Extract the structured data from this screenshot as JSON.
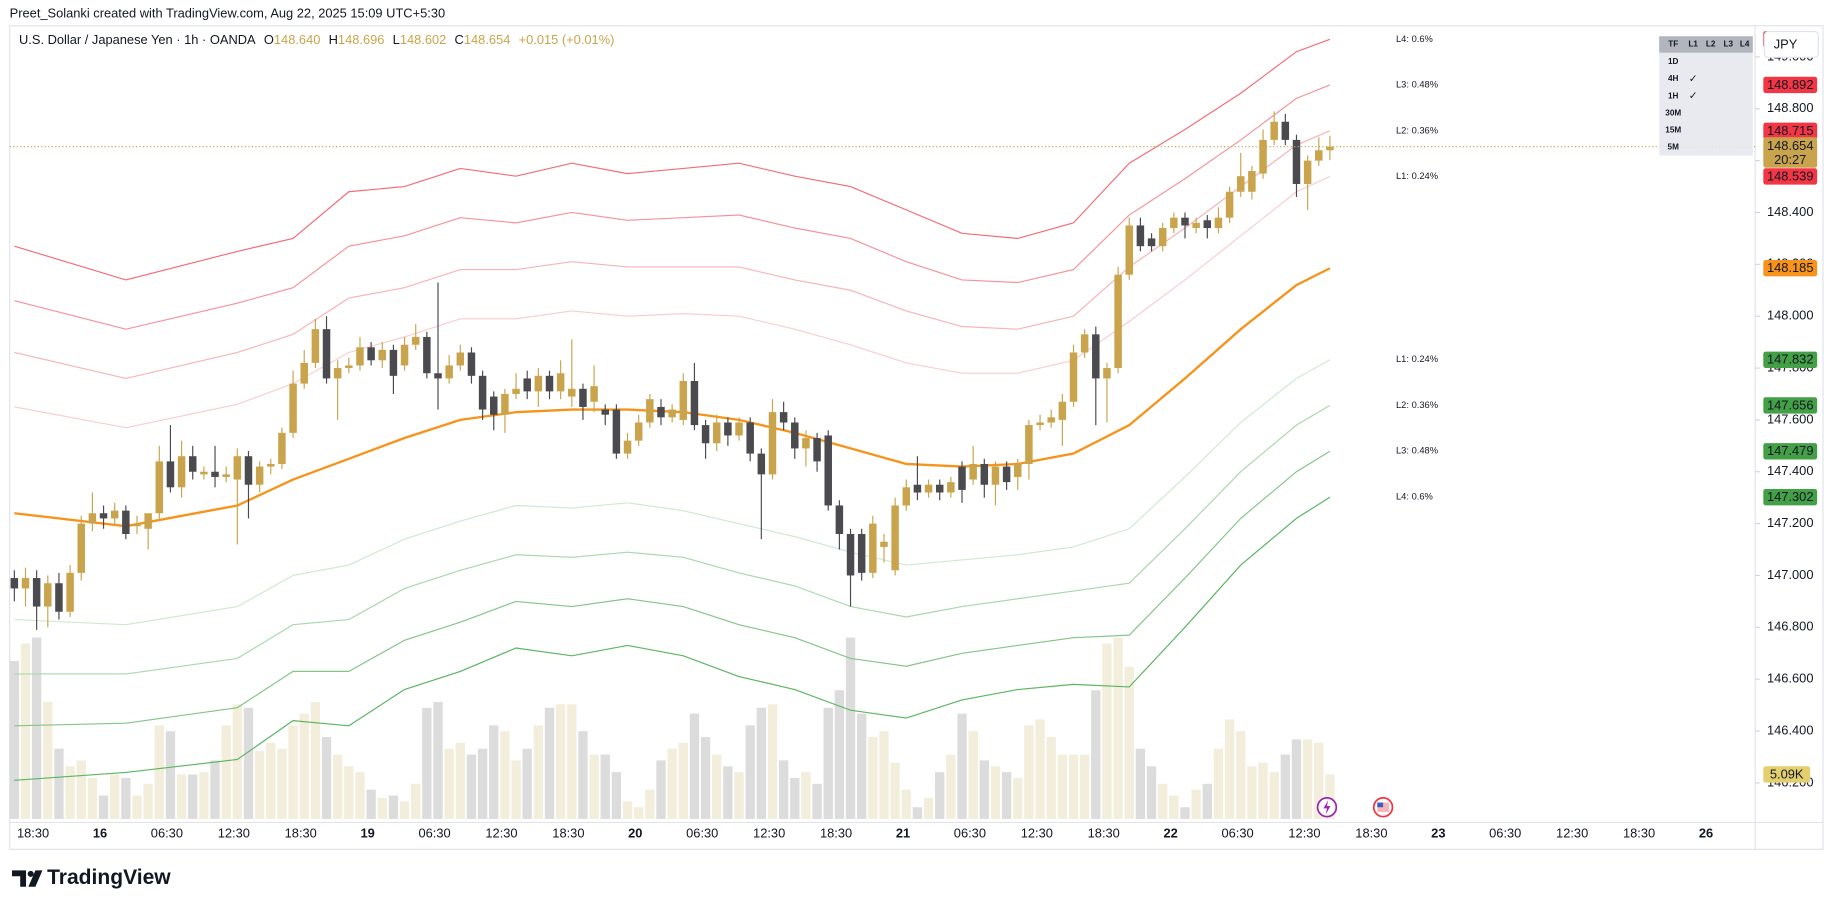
{
  "chart_data": {
    "type": "candlestick",
    "credit": "Preet_Solanki created with TradingView.com, Aug 22, 2025 15:09 UTC+5:30",
    "symbol": "U.S. Dollar / Japanese Yen · 1h · OANDA",
    "legend_keys": [
      "O",
      "H",
      "L",
      "C"
    ],
    "legend_values": [
      "148.640",
      "148.696",
      "148.602",
      "148.654"
    ],
    "change": "+0.015 (+0.01%)",
    "currency": "JPY",
    "countdown": "20:27",
    "brand": "TradingView",
    "up_color": "#c9a44c",
    "down_color": "#4a4a4f",
    "open": [
      146.99,
      146.95,
      146.99,
      146.88,
      146.97,
      146.86,
      147.01,
      147.2,
      147.24,
      147.22,
      147.25,
      147.19,
      147.18,
      147.24,
      147.44,
      147.34,
      147.46,
      147.39,
      147.4,
      147.38,
      147.37,
      147.46,
      147.35,
      147.42,
      147.43,
      147.55,
      147.74,
      147.82,
      147.95,
      147.76,
      147.8,
      147.81,
      147.88,
      147.83,
      147.87,
      147.81,
      147.89,
      147.92,
      147.78,
      147.76,
      147.81,
      147.86,
      147.77,
      147.69,
      147.62,
      147.7,
      147.76,
      147.71,
      147.77,
      147.71,
      147.69,
      147.72,
      147.67,
      147.64,
      147.64,
      147.47,
      147.52,
      147.59,
      147.65,
      147.61,
      147.6,
      147.75,
      147.58,
      147.51,
      147.59,
      147.54,
      147.59,
      147.47,
      147.39,
      147.63,
      147.59,
      147.49,
      147.53,
      147.54,
      147.27,
      147.16,
      147.16,
      147.01,
      147.11,
      147.02,
      147.27,
      147.35,
      147.32,
      147.35,
      147.32,
      147.42,
      147.37,
      147.43,
      147.35,
      147.42,
      147.38,
      147.43,
      147.58,
      147.59,
      147.6,
      147.67,
      147.86,
      147.93,
      147.76,
      147.8,
      148.16,
      148.35,
      148.3,
      148.27,
      148.34,
      148.38,
      148.34,
      148.37,
      148.34,
      148.38,
      148.48,
      148.48,
      148.55,
      148.68,
      148.75,
      148.68,
      148.51,
      148.6,
      148.64
    ],
    "high": [
      147.02,
      147.03,
      147.02,
      147.0,
      147.01,
      147.04,
      147.23,
      147.32,
      147.27,
      147.28,
      147.27,
      147.23,
      147.22,
      147.5,
      147.58,
      147.52,
      147.5,
      147.42,
      147.5,
      147.42,
      147.49,
      147.48,
      147.44,
      147.45,
      147.57,
      147.79,
      147.87,
      147.99,
      148.0,
      147.83,
      147.84,
      147.92,
      147.9,
      147.9,
      147.89,
      147.92,
      147.97,
      147.94,
      148.13,
      147.85,
      147.89,
      147.88,
      147.79,
      147.71,
      147.72,
      147.78,
      147.79,
      147.8,
      147.79,
      147.83,
      147.91,
      147.74,
      147.81,
      147.66,
      147.66,
      147.55,
      147.62,
      147.7,
      147.68,
      147.66,
      147.78,
      147.82,
      147.6,
      147.62,
      147.61,
      147.61,
      147.61,
      147.49,
      147.68,
      147.67,
      147.61,
      147.56,
      147.55,
      147.56,
      147.29,
      147.18,
      147.18,
      147.23,
      147.16,
      147.3,
      147.37,
      147.46,
      147.37,
      147.37,
      147.38,
      147.44,
      147.5,
      147.45,
      147.44,
      147.44,
      147.45,
      147.6,
      147.62,
      147.64,
      147.7,
      147.89,
      147.95,
      147.96,
      147.82,
      148.19,
      148.38,
      148.38,
      148.32,
      148.36,
      148.4,
      148.4,
      148.38,
      148.39,
      148.42,
      148.5,
      148.63,
      148.58,
      148.72,
      148.79,
      148.78,
      148.7,
      148.62,
      148.69,
      148.696
    ],
    "low": [
      146.9,
      146.88,
      146.79,
      146.8,
      146.83,
      146.84,
      146.98,
      147.17,
      147.18,
      147.19,
      147.14,
      147.16,
      147.1,
      147.21,
      147.32,
      147.3,
      147.37,
      147.37,
      147.34,
      147.36,
      147.12,
      147.22,
      147.32,
      147.39,
      147.41,
      147.53,
      147.72,
      147.8,
      147.74,
      147.6,
      147.78,
      147.79,
      147.81,
      147.8,
      147.7,
      147.79,
      147.87,
      147.76,
      147.64,
      147.74,
      147.79,
      147.74,
      147.6,
      147.56,
      147.55,
      147.68,
      147.68,
      147.65,
      147.68,
      147.68,
      147.65,
      147.6,
      147.63,
      147.58,
      147.45,
      147.45,
      147.5,
      147.57,
      147.58,
      147.59,
      147.58,
      147.56,
      147.45,
      147.48,
      147.5,
      147.52,
      147.44,
      147.14,
      147.37,
      147.56,
      147.45,
      147.42,
      147.4,
      147.25,
      147.1,
      146.88,
      146.98,
      146.99,
      147.05,
      147.0,
      147.25,
      147.29,
      147.3,
      147.29,
      147.3,
      147.28,
      147.35,
      147.3,
      147.27,
      147.33,
      147.33,
      147.37,
      147.56,
      147.57,
      147.5,
      147.65,
      147.84,
      147.58,
      147.59,
      147.78,
      148.14,
      148.25,
      148.25,
      148.25,
      148.32,
      148.3,
      148.32,
      148.3,
      148.32,
      148.36,
      148.46,
      148.45,
      148.53,
      148.66,
      148.66,
      148.46,
      148.41,
      148.58,
      148.602
    ],
    "close": [
      146.95,
      146.99,
      146.88,
      146.97,
      146.86,
      147.01,
      147.2,
      147.24,
      147.22,
      147.25,
      147.16,
      147.2,
      147.24,
      147.44,
      147.34,
      147.46,
      147.4,
      147.4,
      147.38,
      147.39,
      147.46,
      147.35,
      147.42,
      147.43,
      147.55,
      147.74,
      147.82,
      147.95,
      147.76,
      147.8,
      147.81,
      147.88,
      147.83,
      147.87,
      147.77,
      147.89,
      147.92,
      147.78,
      147.76,
      147.81,
      147.86,
      147.77,
      147.64,
      147.62,
      147.7,
      147.72,
      147.71,
      147.77,
      147.71,
      147.78,
      147.72,
      147.65,
      147.73,
      147.62,
      147.47,
      147.52,
      147.59,
      147.68,
      147.61,
      147.64,
      147.75,
      147.58,
      147.51,
      147.59,
      147.54,
      147.59,
      147.47,
      147.39,
      147.63,
      147.59,
      147.49,
      147.53,
      147.44,
      147.27,
      147.16,
      147.0,
      147.01,
      147.2,
      147.13,
      147.27,
      147.34,
      147.32,
      147.35,
      147.32,
      147.36,
      147.33,
      147.43,
      147.35,
      147.42,
      147.36,
      147.43,
      147.58,
      147.59,
      147.61,
      147.67,
      147.86,
      147.93,
      147.76,
      147.8,
      148.16,
      148.35,
      148.27,
      148.27,
      148.34,
      148.38,
      148.35,
      148.36,
      148.34,
      148.38,
      148.48,
      148.54,
      148.56,
      148.68,
      148.75,
      148.68,
      148.51,
      148.6,
      148.64,
      148.654
    ],
    "volume": {
      "up_color": "#f2eedb",
      "down_color": "#dcdcdc",
      "last_label": "5.09K",
      "label_color": "#e3cf6e",
      "values": [
        18090,
        20100,
        20770,
        13400,
        8040,
        6030,
        6700,
        4690,
        2680,
        5090,
        4690,
        2680,
        4020,
        10720,
        10050,
        5090,
        5090,
        5360,
        6700,
        10720,
        13130,
        12730,
        7770,
        8710,
        8040,
        10720,
        12060,
        13400,
        9380,
        7370,
        6030,
        5360,
        3350,
        2410,
        2680,
        2010,
        4020,
        12730,
        13400,
        8040,
        8710,
        7370,
        8040,
        10720,
        10050,
        6700,
        8040,
        10720,
        12730,
        13130,
        13130,
        10050,
        7370,
        7370,
        5360,
        2010,
        1340,
        3350,
        6700,
        8040,
        8710,
        12060,
        9380,
        7370,
        6030,
        5360,
        10720,
        12730,
        13130,
        6700,
        4690,
        5360,
        4020,
        12730,
        14740,
        20770,
        12060,
        9380,
        10050,
        6430,
        3350,
        1340,
        2410,
        5360,
        7370,
        12060,
        10050,
        6700,
        6030,
        5360,
        4690,
        10720,
        11390,
        9380,
        7370,
        7370,
        7370,
        14740,
        20100,
        20770,
        17420,
        8040,
        6030,
        4020,
        2680,
        1340,
        3350,
        4020,
        8040,
        11390,
        10050,
        6030,
        6430,
        5360,
        7370,
        9110,
        9110,
        8710,
        5090
      ]
    },
    "line_x": [
      0,
      10,
      20,
      25,
      30,
      35,
      40,
      45,
      50,
      55,
      60,
      65,
      70,
      75,
      80,
      85,
      90,
      95,
      100,
      105,
      110,
      115,
      118
    ],
    "ma": {
      "color": "#f7931a",
      "values": [
        147.24,
        147.19,
        147.27,
        147.37,
        147.45,
        147.53,
        147.6,
        147.63,
        147.64,
        147.64,
        147.63,
        147.6,
        147.55,
        147.49,
        147.43,
        147.42,
        147.43,
        147.47,
        147.58,
        147.76,
        147.95,
        148.12,
        148.185
      ]
    },
    "upper_bands": {
      "badge_color": "#f23645",
      "series": [
        {
          "name": "L4: 0.6%",
          "color": "#f26d78",
          "values": [
            148.27,
            148.14,
            148.25,
            148.3,
            148.48,
            148.5,
            148.57,
            148.54,
            148.59,
            148.55,
            148.57,
            148.59,
            148.54,
            148.5,
            148.41,
            148.32,
            148.3,
            148.36,
            148.59,
            148.72,
            148.86,
            149.02,
            149.068
          ]
        },
        {
          "name": "L3: 0.48%",
          "color": "#f5939a",
          "values": [
            148.06,
            147.95,
            148.05,
            148.11,
            148.27,
            148.31,
            148.38,
            148.36,
            148.4,
            148.37,
            148.38,
            148.39,
            148.34,
            148.3,
            148.21,
            148.14,
            148.13,
            148.18,
            148.39,
            148.53,
            148.68,
            148.84,
            148.892
          ]
        },
        {
          "name": "L2: 0.36%",
          "color": "#f8b3b8",
          "values": [
            147.86,
            147.76,
            147.86,
            147.93,
            148.07,
            148.11,
            148.18,
            148.18,
            148.21,
            148.19,
            148.19,
            148.19,
            148.14,
            148.1,
            148.02,
            147.96,
            147.95,
            148.0,
            148.19,
            148.34,
            148.5,
            148.66,
            148.715
          ]
        },
        {
          "name": "L1: 0.24%",
          "color": "#facdd0",
          "values": [
            147.65,
            147.57,
            147.66,
            147.74,
            147.86,
            147.92,
            147.99,
            147.99,
            148.02,
            148.0,
            148.01,
            148.0,
            147.95,
            147.89,
            147.82,
            147.78,
            147.78,
            147.83,
            147.98,
            148.14,
            148.31,
            148.48,
            148.539
          ]
        }
      ]
    },
    "lower_bands": {
      "badge_color": "#43a047",
      "series": [
        {
          "name": "L1: 0.24%",
          "color": "#cfe9d0",
          "values": [
            146.83,
            146.81,
            146.88,
            147.0,
            147.04,
            147.14,
            147.21,
            147.27,
            147.26,
            147.28,
            147.25,
            147.2,
            147.15,
            147.09,
            147.04,
            147.06,
            147.08,
            147.11,
            147.18,
            147.38,
            147.59,
            147.76,
            147.832
          ]
        },
        {
          "name": "L2: 0.36%",
          "color": "#a9d8ab",
          "values": [
            146.62,
            146.62,
            146.68,
            146.81,
            146.83,
            146.95,
            147.02,
            147.08,
            147.07,
            147.09,
            147.07,
            147.01,
            146.96,
            146.88,
            146.84,
            146.88,
            146.91,
            146.94,
            146.97,
            147.18,
            147.4,
            147.58,
            147.656
          ]
        },
        {
          "name": "L3: 0.48%",
          "color": "#84c587",
          "values": [
            146.42,
            146.43,
            146.49,
            146.63,
            146.63,
            146.75,
            146.82,
            146.9,
            146.88,
            146.91,
            146.88,
            146.81,
            146.76,
            146.68,
            146.65,
            146.7,
            146.73,
            146.76,
            146.77,
            146.99,
            147.22,
            147.4,
            147.479
          ]
        },
        {
          "name": "L4: 0.6%",
          "color": "#5cb560",
          "values": [
            146.21,
            146.24,
            146.29,
            146.44,
            146.42,
            146.56,
            146.63,
            146.72,
            146.69,
            146.73,
            146.69,
            146.61,
            146.56,
            146.48,
            146.45,
            146.52,
            146.56,
            146.58,
            146.57,
            146.8,
            147.04,
            147.22,
            147.302
          ]
        }
      ]
    },
    "ylim": [
      146.07,
      149.1
    ],
    "yticks": [
      {
        "value": 146.2,
        "label": "146.200"
      },
      {
        "value": 146.4,
        "label": "146.400"
      },
      {
        "value": 146.6,
        "label": "146.600"
      },
      {
        "value": 146.8,
        "label": "146.800"
      },
      {
        "value": 147,
        "label": "147.000"
      },
      {
        "value": 147.2,
        "label": "147.200"
      },
      {
        "value": 147.4,
        "label": "147.400"
      },
      {
        "value": 147.6,
        "label": "147.600"
      },
      {
        "value": 147.8,
        "label": "147.800"
      },
      {
        "value": 148,
        "label": "148.000"
      },
      {
        "value": 148.2,
        "label": "148.200"
      },
      {
        "value": 148.4,
        "label": "148.400"
      },
      {
        "value": 148.6,
        "label": "148.600"
      },
      {
        "value": 148.8,
        "label": "148.800"
      },
      {
        "value": 149,
        "label": "149.000"
      }
    ],
    "xtick_labels": [
      "18:30",
      "16",
      "06:30",
      "12:30",
      "18:30",
      "19",
      "06:30",
      "12:30",
      "18:30",
      "20",
      "06:30",
      "12:30",
      "18:30",
      "21",
      "06:30",
      "12:30",
      "18:30",
      "22",
      "06:30",
      "12:30",
      "18:30",
      "23",
      "06:30",
      "12:30",
      "18:30",
      "26"
    ],
    "tf_table": {
      "header": [
        "TF",
        "L1",
        "L2",
        "L3",
        "L4"
      ],
      "rows": [
        [
          "1D"
        ],
        [
          "4H",
          "✓"
        ],
        [
          "1H",
          "✓"
        ],
        [
          "30M"
        ],
        [
          "15M"
        ],
        [
          "5M"
        ]
      ]
    }
  }
}
